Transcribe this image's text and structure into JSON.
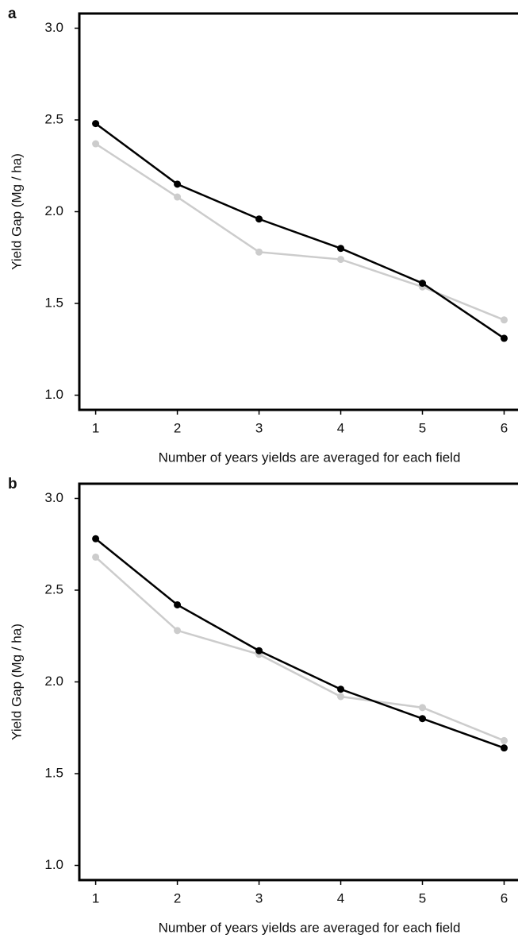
{
  "chart_data": [
    {
      "type": "line",
      "panel_label": "a",
      "x_label": "Number of years yields are averaged for each field",
      "y_label": "Yield Gap (Mg / ha)",
      "x": [
        1,
        2,
        3,
        4,
        5,
        6
      ],
      "series": [
        {
          "color": "#cccccc",
          "values": [
            2.37,
            2.08,
            1.78,
            1.74,
            1.59,
            1.41
          ]
        },
        {
          "color": "#000000",
          "values": [
            2.48,
            2.15,
            1.96,
            1.8,
            1.61,
            1.31
          ]
        }
      ],
      "xlim": [
        0.8,
        6.17
      ],
      "xticks": [
        1,
        2,
        3,
        4,
        5,
        6
      ],
      "ylim": [
        0.92,
        3.08
      ],
      "yticks": [
        {
          "value": 1.0,
          "label": "1.0"
        },
        1.5,
        {
          "value": 2.0,
          "label": "2.0"
        },
        2.5,
        {
          "value": 3.0,
          "label": "3.0"
        }
      ]
    },
    {
      "type": "line",
      "panel_label": "b",
      "x_label": "Number of years yields are averaged for each field",
      "y_label": "Yield Gap (Mg / ha)",
      "x": [
        1,
        2,
        3,
        4,
        5,
        6
      ],
      "series": [
        {
          "color": "#cccccc",
          "values": [
            2.68,
            2.28,
            2.15,
            1.92,
            1.86,
            1.68
          ]
        },
        {
          "color": "#000000",
          "values": [
            2.78,
            2.42,
            2.17,
            1.96,
            1.8,
            1.64
          ]
        }
      ],
      "xlim": [
        0.8,
        6.17
      ],
      "xticks": [
        1,
        2,
        3,
        4,
        5,
        6
      ],
      "ylim": [
        0.92,
        3.08
      ],
      "yticks": [
        {
          "value": 1.0,
          "label": "1.0"
        },
        1.5,
        {
          "value": 2.0,
          "label": "2.0"
        },
        2.5,
        {
          "value": 3.0,
          "label": "3.0"
        }
      ]
    }
  ]
}
